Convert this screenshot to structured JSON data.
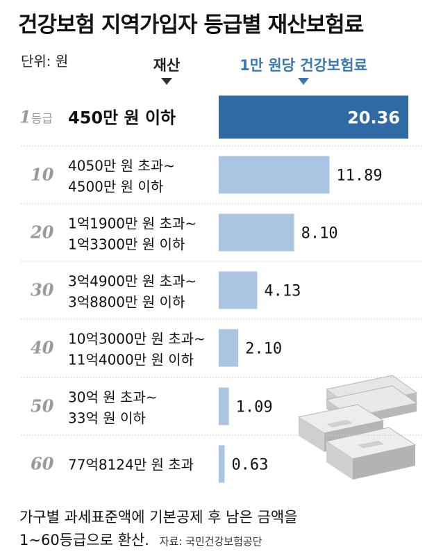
{
  "title": "건강보험 지역가입자 등급별 재산보험료",
  "unit": "단위: 원",
  "column_headers": {
    "asset": "재산",
    "rate": "1만 원당 건강보험료"
  },
  "grade_suffix": "등급",
  "chart_data": {
    "type": "bar",
    "orientation": "horizontal",
    "categories": [
      "1",
      "10",
      "20",
      "30",
      "40",
      "50",
      "60"
    ],
    "range_labels": [
      [
        "450만 원 이하"
      ],
      [
        "4050만 원 초과~",
        "4500만 원 이하"
      ],
      [
        "1억1900만 원 초과~",
        "1억3300만 원 이하"
      ],
      [
        "3억4900만 원 초과~",
        "3억8800만 원 이하"
      ],
      [
        "10억3000만 원 초과~",
        "11억4000만 원 이하"
      ],
      [
        "30억 원 초과~",
        "33억 원 이하"
      ],
      [
        "77억8124만 원 초과"
      ]
    ],
    "values": [
      20.36,
      11.89,
      8.1,
      4.13,
      2.1,
      1.09,
      0.63
    ],
    "value_labels": [
      "20.36",
      "11.89",
      "8.10",
      "4.13",
      "2.10",
      "1.09",
      "0.63"
    ],
    "xlim": [
      0,
      20.36
    ],
    "colors": {
      "highlight": "#2f6aa5",
      "bar": "#a9c5e2"
    }
  },
  "note": {
    "line1": "가구별 과세표준액에 기본공제 후 남은 금액을",
    "line2": "1~60등급으로 환산.",
    "source": "자료: 국민건강보험공단"
  }
}
